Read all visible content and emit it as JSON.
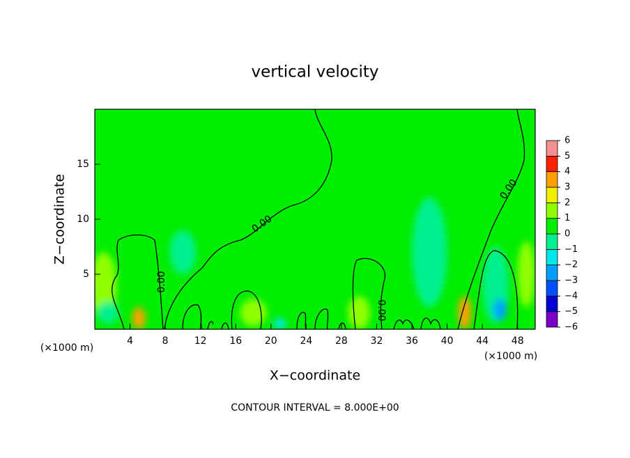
{
  "chart_data": {
    "type": "contour",
    "title": "vertical velocity",
    "xlabel": "X−coordinate",
    "ylabel": "Z−coordinate",
    "x_unit_labels": [
      "(×1000 m)",
      "(×1000 m)"
    ],
    "annotation": "CONTOUR INTERVAL = 8.000E+00",
    "contour_labels": [
      "0.00",
      "0.00",
      "0.00",
      "0.00"
    ],
    "xlim": [
      0,
      50
    ],
    "ylim": [
      0,
      20
    ],
    "xticks": [
      4,
      8,
      12,
      16,
      20,
      24,
      28,
      32,
      36,
      40,
      44,
      48
    ],
    "yticks": [
      5,
      10,
      15
    ],
    "background_value": 0,
    "levels": [
      {
        "value": -6,
        "label": "−6"
      },
      {
        "value": -5,
        "label": "−5"
      },
      {
        "value": -4,
        "label": "−4"
      },
      {
        "value": -3,
        "label": "−3"
      },
      {
        "value": -2,
        "label": "−2"
      },
      {
        "value": -1,
        "label": "−1"
      },
      0,
      1,
      2,
      3,
      4,
      5,
      6
    ],
    "colors": [
      "#7a00c8",
      "#0000d0",
      "#0050ff",
      "#00a0ff",
      "#00e8e8",
      "#00f090",
      "#00ee00",
      "#90ff00",
      "#f0f000",
      "#ffa000",
      "#ff2000",
      "#f49090"
    ],
    "features": [
      {
        "x": 1,
        "z": 4,
        "value": 1,
        "width": 3,
        "height": 6
      },
      {
        "x": 1.5,
        "z": 1.5,
        "value": -1,
        "width": 2.5,
        "height": 2
      },
      {
        "x": 5,
        "z": 1,
        "value": 3,
        "width": 1.5,
        "height": 2
      },
      {
        "x": 10,
        "z": 7,
        "value": -1,
        "width": 3,
        "height": 4
      },
      {
        "x": 18,
        "z": 1.5,
        "value": 1,
        "width": 3,
        "height": 2.5
      },
      {
        "x": 21,
        "z": 0.5,
        "value": -2,
        "width": 1.5,
        "height": 1
      },
      {
        "x": 30,
        "z": 1.5,
        "value": 1,
        "width": 2.5,
        "height": 3
      },
      {
        "x": 38,
        "z": 7,
        "value": -1,
        "width": 4,
        "height": 10
      },
      {
        "x": 42,
        "z": 1.5,
        "value": 3,
        "width": 1.5,
        "height": 3
      },
      {
        "x": 45.5,
        "z": 4,
        "value": -1,
        "width": 3,
        "height": 7
      },
      {
        "x": 46,
        "z": 1.8,
        "value": -3,
        "width": 1.5,
        "height": 2
      },
      {
        "x": 49,
        "z": 5,
        "value": 1,
        "width": 2,
        "height": 6
      }
    ]
  }
}
